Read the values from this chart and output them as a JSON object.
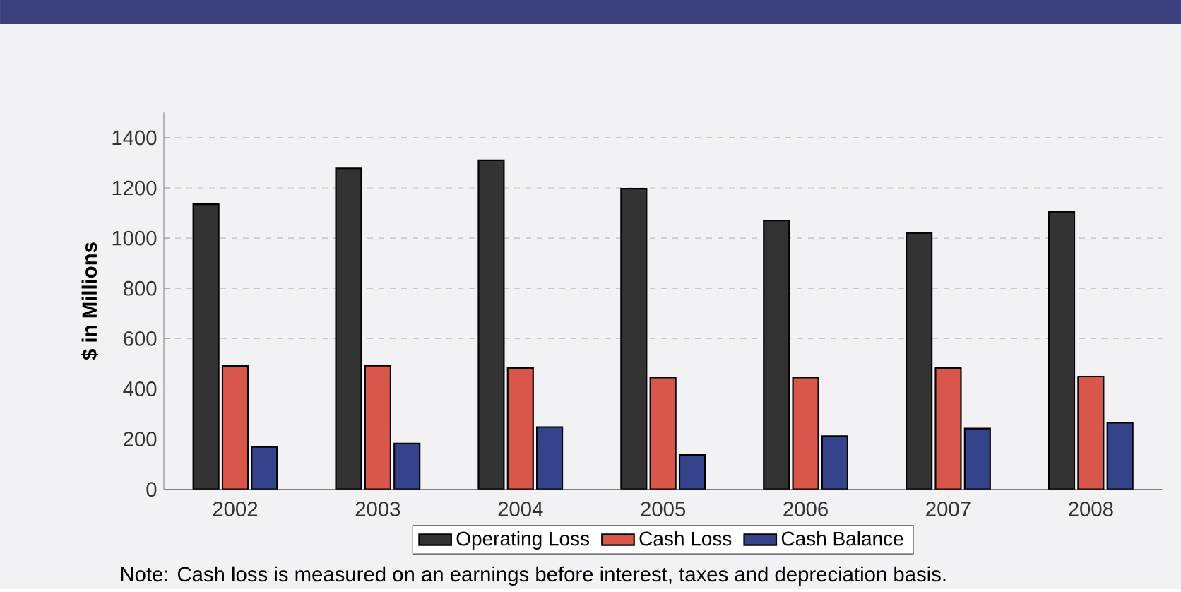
{
  "chart_data": {
    "type": "bar",
    "ylabel": "$ in Millions",
    "categories": [
      "2002",
      "2003",
      "2004",
      "2005",
      "2006",
      "2007",
      "2008"
    ],
    "series": [
      {
        "name": "Operating Loss",
        "color": "#333333",
        "values": [
          1135,
          1278,
          1310,
          1197,
          1070,
          1021,
          1105
        ]
      },
      {
        "name": "Cash Loss",
        "color": "#d9574a",
        "values": [
          491,
          492,
          483,
          445,
          445,
          483,
          449
        ]
      },
      {
        "name": "Cash Balance",
        "color": "#35438a",
        "values": [
          169,
          182,
          248,
          137,
          212,
          242,
          265
        ]
      }
    ],
    "ylim": [
      0,
      1500
    ],
    "yticks": [
      0,
      200,
      400,
      600,
      800,
      1000,
      1200,
      1400
    ],
    "grid": "y",
    "legend": "bottom",
    "annotations": [
      "Note: Cash loss is measured on an earnings before interest, taxes and depreciation basis."
    ]
  }
}
